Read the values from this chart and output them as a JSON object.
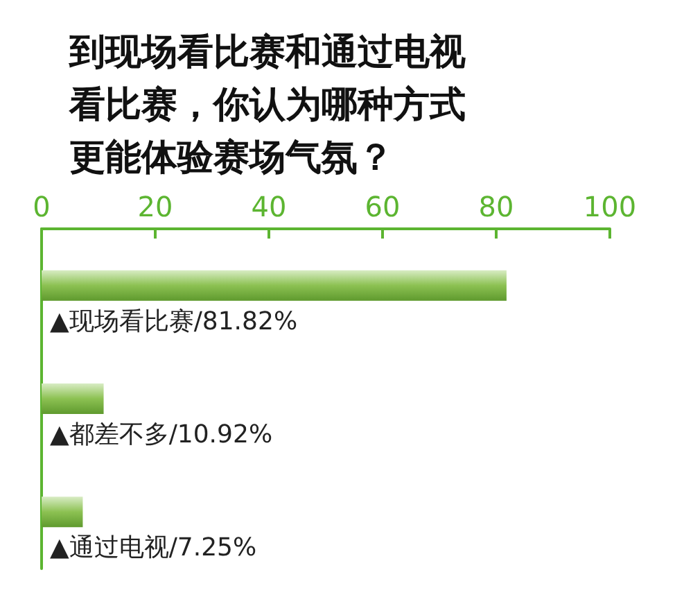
{
  "chart_data": {
    "type": "bar",
    "orientation": "horizontal",
    "title": "到现场看比赛和通过电视看比赛，你认为哪种方式更能体验赛场气氛？",
    "categories": [
      null,
      null,
      null
    ],
    "values": [
      81.82,
      10.92,
      7.25
    ],
    "value_labels": [
      "▲现场看比赛/81.82%",
      "▲都差不多/10.92%",
      "▲通过电视/7.25%"
    ],
    "color": "#8cc152",
    "xlim": [
      0,
      100
    ],
    "xticks": [
      0,
      20,
      40,
      60,
      80,
      100
    ],
    "tick_labels": "x",
    "grid": false
  }
}
